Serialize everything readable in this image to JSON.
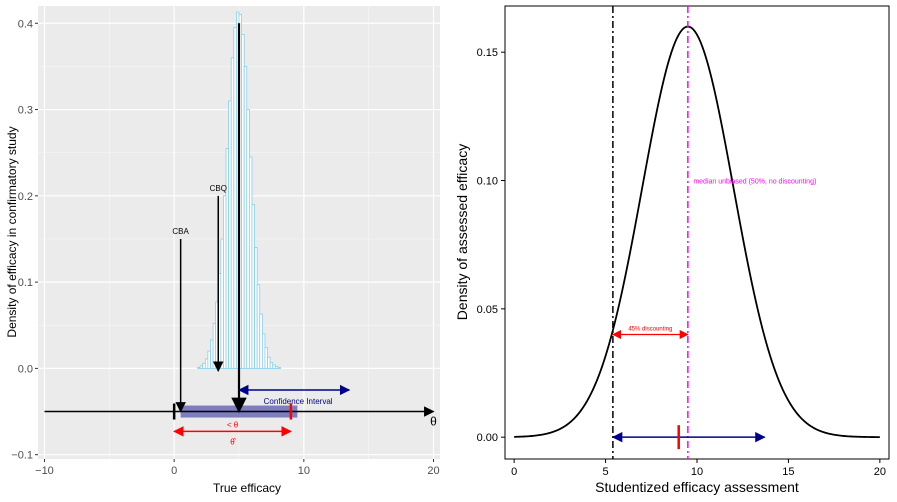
{
  "chart_data": [
    {
      "type": "bar",
      "subtype": "histogram-with-annotations",
      "xlabel": "True efficacy",
      "ylabel": "Density of efficacy in confirmatory study",
      "xlim": [
        -10.5,
        20.5
      ],
      "ylim": [
        -0.105,
        0.42
      ],
      "x_ticks": [
        -10,
        0,
        10,
        20
      ],
      "x_tick_labels": [
        "−10",
        "0",
        "10",
        "20"
      ],
      "y_ticks": [
        -0.1,
        0.0,
        0.1,
        0.2,
        0.3,
        0.4
      ],
      "y_tick_labels": [
        "−0.1",
        "0.0",
        "0.1",
        "0.2",
        "0.3",
        "0.4"
      ],
      "grid": true,
      "histogram": {
        "bin_width": 0.2,
        "x": [
          1.9,
          2.1,
          2.3,
          2.5,
          2.7,
          2.9,
          3.1,
          3.3,
          3.5,
          3.7,
          3.9,
          4.1,
          4.3,
          4.5,
          4.7,
          4.9,
          5.1,
          5.3,
          5.5,
          5.7,
          5.9,
          6.1,
          6.3,
          6.5,
          6.7,
          6.9,
          7.1,
          7.3,
          7.5,
          7.7,
          7.9,
          8.1
        ],
        "values": [
          0.001,
          0.003,
          0.006,
          0.011,
          0.02,
          0.033,
          0.052,
          0.077,
          0.11,
          0.15,
          0.2,
          0.255,
          0.31,
          0.36,
          0.395,
          0.413,
          0.41,
          0.387,
          0.35,
          0.3,
          0.245,
          0.19,
          0.14,
          0.097,
          0.063,
          0.04,
          0.024,
          0.013,
          0.007,
          0.004,
          0.002,
          0.001
        ],
        "fill": "#ffffff",
        "outline": "#87ceeb"
      },
      "axis_line": {
        "y": -0.05,
        "from": -10,
        "to": 20,
        "label": "θ"
      },
      "confidence_band": {
        "from": 0.5,
        "to": 9.5,
        "y": -0.05,
        "color": "#6b6bb5"
      },
      "tick_marks": [
        {
          "x": 0,
          "color": "#000000"
        },
        {
          "x": 9,
          "color": "#ff0000"
        }
      ],
      "annotations": [
        {
          "label": "CBA",
          "x": 0.5,
          "y_from": 0.15,
          "y_to": -0.05
        },
        {
          "label": "CBQ",
          "x": 3.4,
          "y_from": 0.2,
          "y_to": -0.003
        },
        {
          "label": "",
          "x": 5,
          "y_from": 0.4,
          "y_to": -0.05
        }
      ],
      "ci_arrow": {
        "label": "Confidence Interval",
        "from": 5,
        "to": 13.5,
        "y": -0.025,
        "color": "#00008b"
      },
      "red_arrow": {
        "label_top": "< θ",
        "label_bottom": "θ̂",
        "from": 0,
        "to": 9,
        "y": -0.073,
        "color": "#ff0000"
      }
    },
    {
      "type": "line",
      "xlabel": "Studentized efficacy assessment",
      "ylabel": "Density of assessed efficacy",
      "xlim": [
        -0.5,
        20.5
      ],
      "ylim": [
        -0.0085,
        0.168
      ],
      "x_ticks": [
        0,
        5,
        10,
        15,
        20
      ],
      "x_tick_labels": [
        "0",
        "5",
        "10",
        "15",
        "20"
      ],
      "y_ticks": [
        0.0,
        0.05,
        0.1,
        0.15
      ],
      "y_tick_labels": [
        "0.00",
        "0.05",
        "0.10",
        "0.15"
      ],
      "grid": false,
      "curve": {
        "type": "normal-density",
        "mean": 9.5,
        "sd": 2.5,
        "from": 0,
        "to": 20,
        "color": "#000000"
      },
      "vlines": [
        {
          "x": 5.4,
          "color": "#000000",
          "style": "dashdot"
        },
        {
          "x": 9.5,
          "color": "#ff00ff",
          "style": "dashdot"
        }
      ],
      "annotations": [
        {
          "label": "median unbiased (50%, no discounting)",
          "x": 9.8,
          "y": 0.1,
          "color": "#ff00ff"
        },
        {
          "label": "45% discounting",
          "x": 7.45,
          "y": 0.0415,
          "color": "#ff0000"
        }
      ],
      "discount_arrow": {
        "from": 5.4,
        "to": 9.5,
        "y": 0.04,
        "color": "#ff0000"
      },
      "interval_arrow": {
        "from": 5.4,
        "to": 13.7,
        "y": 0.0,
        "color": "#00008b"
      },
      "red_tick": {
        "x": 9.0,
        "y": 0.0,
        "color": "#ff0000"
      }
    }
  ]
}
